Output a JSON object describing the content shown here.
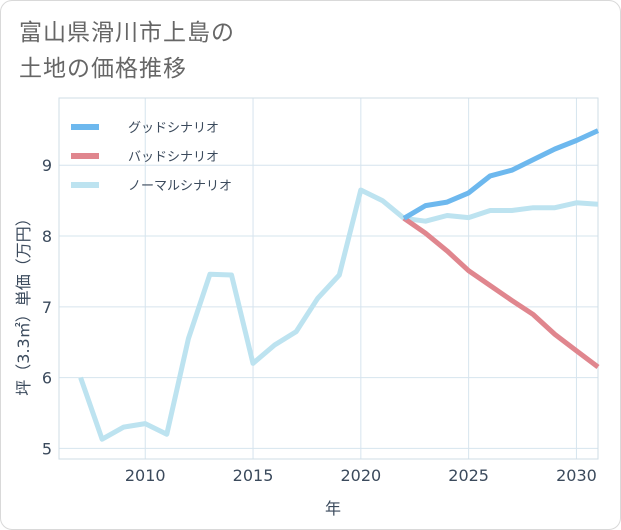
{
  "chart_data": {
    "type": "line",
    "title": "富山県滑川市上島の\n土地の価格推移",
    "xlabel": "年",
    "ylabel": "坪（3.3㎡）単価（万円）",
    "xlim": [
      2006,
      2031
    ],
    "ylim": [
      4.85,
      9.95
    ],
    "x_ticks": [
      2010,
      2015,
      2020,
      2025,
      2030
    ],
    "y_ticks": [
      5,
      6,
      7,
      8,
      9
    ],
    "grid": true,
    "legend_position": "top-left",
    "series": [
      {
        "name": "グッドシナリオ",
        "color": "#6db8ee",
        "x": [
          2022,
          2023,
          2024,
          2025,
          2026,
          2027,
          2028,
          2029,
          2030,
          2031
        ],
        "values": [
          8.25,
          8.43,
          8.48,
          8.61,
          8.85,
          8.93,
          9.08,
          9.23,
          9.35,
          9.49
        ]
      },
      {
        "name": "バッドシナリオ",
        "color": "#e0868e",
        "x": [
          2022,
          2023,
          2024,
          2025,
          2026,
          2027,
          2028,
          2029,
          2030,
          2031
        ],
        "values": [
          8.25,
          8.04,
          7.79,
          7.51,
          7.3,
          7.09,
          6.89,
          6.61,
          6.38,
          6.15
        ]
      },
      {
        "name": "ノーマルシナリオ",
        "color": "#bde3f0",
        "x": [
          2007,
          2008,
          2009,
          2010,
          2011,
          2012,
          2013,
          2014,
          2015,
          2016,
          2017,
          2018,
          2019,
          2020,
          2021,
          2022,
          2023,
          2024,
          2025,
          2026,
          2027,
          2028,
          2029,
          2030,
          2031
        ],
        "values": [
          6.0,
          5.13,
          5.3,
          5.35,
          5.2,
          6.55,
          7.46,
          7.45,
          6.2,
          6.46,
          6.65,
          7.12,
          7.45,
          8.65,
          8.5,
          8.25,
          8.21,
          8.29,
          8.26,
          8.36,
          8.36,
          8.4,
          8.4,
          8.47,
          8.45
        ]
      }
    ]
  }
}
